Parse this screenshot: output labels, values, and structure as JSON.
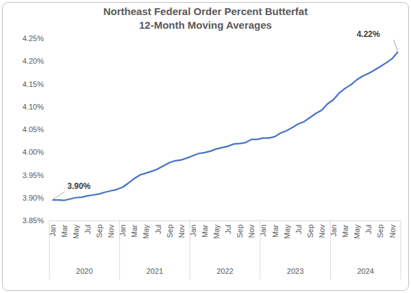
{
  "chart_data": {
    "type": "line",
    "title": "Northeast Federal Order Percent Butterfat",
    "subtitle": "12-Month Moving Averages",
    "categories": [
      "Jan",
      null,
      "Mar",
      null,
      "May",
      null,
      "Jul",
      null,
      "Sep",
      null,
      "Nov",
      null,
      "Jan",
      null,
      "Mar",
      null,
      "May",
      null,
      "Jul",
      null,
      "Sep",
      null,
      "Nov",
      null,
      "Jan",
      null,
      "Mar",
      null,
      "May",
      null,
      "Jul",
      null,
      "Sep",
      null,
      "Nov",
      null,
      "Jan",
      null,
      "Mar",
      null,
      "May",
      null,
      "Jul",
      null,
      "Sep",
      null,
      "Nov",
      null,
      "Jan",
      null,
      "Mar",
      null,
      "May",
      null,
      "Jul",
      null,
      "Sep",
      null,
      "Nov",
      null
    ],
    "groups": [
      "2020",
      "2021",
      "2022",
      "2023",
      "2024"
    ],
    "values": [
      3.895,
      3.895,
      3.894,
      3.897,
      3.9,
      3.901,
      3.904,
      3.906,
      3.908,
      3.912,
      3.915,
      3.918,
      3.923,
      3.932,
      3.942,
      3.95,
      3.954,
      3.958,
      3.963,
      3.97,
      3.977,
      3.981,
      3.983,
      3.987,
      3.992,
      3.997,
      3.999,
      4.002,
      4.007,
      4.01,
      4.013,
      4.018,
      4.019,
      4.021,
      4.028,
      4.028,
      4.031,
      4.031,
      4.034,
      4.042,
      4.047,
      4.054,
      4.062,
      4.067,
      4.076,
      4.085,
      4.092,
      4.106,
      4.115,
      4.13,
      4.14,
      4.148,
      4.159,
      4.167,
      4.173,
      4.18,
      4.188,
      4.196,
      4.205,
      4.22
    ],
    "color": "#4472c4",
    "ylim": [
      3.85,
      4.25
    ],
    "yticks": [
      {
        "value": 3.85,
        "label": "3.85%"
      },
      {
        "value": 3.9,
        "label": "3.90%"
      },
      {
        "value": 3.95,
        "label": "3.95%"
      },
      {
        "value": 4.0,
        "label": "4.00%"
      },
      {
        "value": 4.05,
        "label": "4.05%"
      },
      {
        "value": 4.1,
        "label": "4.10%"
      },
      {
        "value": 4.15,
        "label": "4.15%"
      },
      {
        "value": 4.2,
        "label": "4.20%"
      },
      {
        "value": 4.25,
        "label": "4.25%"
      }
    ],
    "grid": false,
    "annotations": [
      {
        "text": "3.90%",
        "index": 0
      },
      {
        "text": "4.22%",
        "index": 59
      }
    ]
  }
}
